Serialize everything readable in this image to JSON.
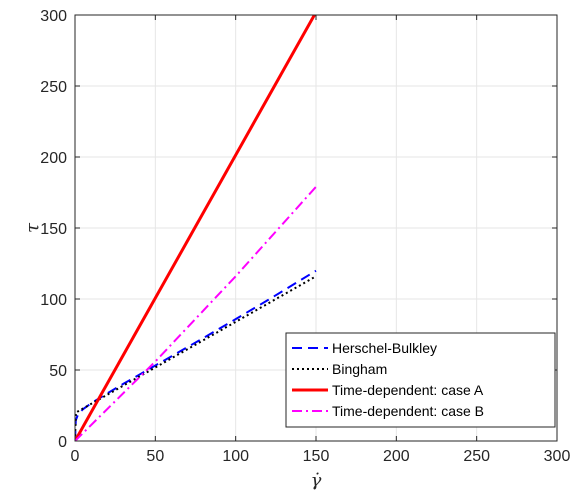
{
  "chart_data": {
    "type": "line",
    "title": "",
    "xlabel": "γ̇",
    "ylabel": "τ",
    "xlim": [
      0,
      300
    ],
    "ylim": [
      0,
      300
    ],
    "xticks": [
      0,
      50,
      100,
      150,
      200,
      250,
      300
    ],
    "yticks": [
      0,
      50,
      100,
      150,
      200,
      250,
      300
    ],
    "grid": true,
    "legend_position": "bottom-right",
    "series": [
      {
        "name": "Herschel-Bulkley",
        "color": "#0000ff",
        "style": "dashed",
        "x": [
          0,
          0.5,
          2,
          5,
          10,
          20,
          30,
          40,
          50,
          60,
          70,
          80,
          90,
          100,
          110,
          120,
          130,
          140,
          150
        ],
        "y": [
          0,
          14.6,
          19.1,
          22.4,
          26.5,
          33.5,
          40.2,
          46.7,
          53.2,
          59.6,
          66.1,
          72.6,
          79.2,
          85.8,
          92.5,
          99.2,
          106.1,
          113,
          119.9
        ]
      },
      {
        "name": "Bingham",
        "color": "#000000",
        "style": "dotted",
        "x": [
          0,
          0.5,
          150
        ],
        "y": [
          0,
          20,
          116
        ]
      },
      {
        "name": "Time-dependent: case A",
        "color": "#ff0000",
        "style": "solid",
        "x": [
          0,
          150
        ],
        "y": [
          0,
          302
        ]
      },
      {
        "name": "Time-dependent: case B",
        "color": "#ff00ff",
        "style": "dashdot",
        "x": [
          0,
          50,
          100,
          150
        ],
        "y": [
          0,
          56,
          116,
          179
        ]
      }
    ]
  }
}
